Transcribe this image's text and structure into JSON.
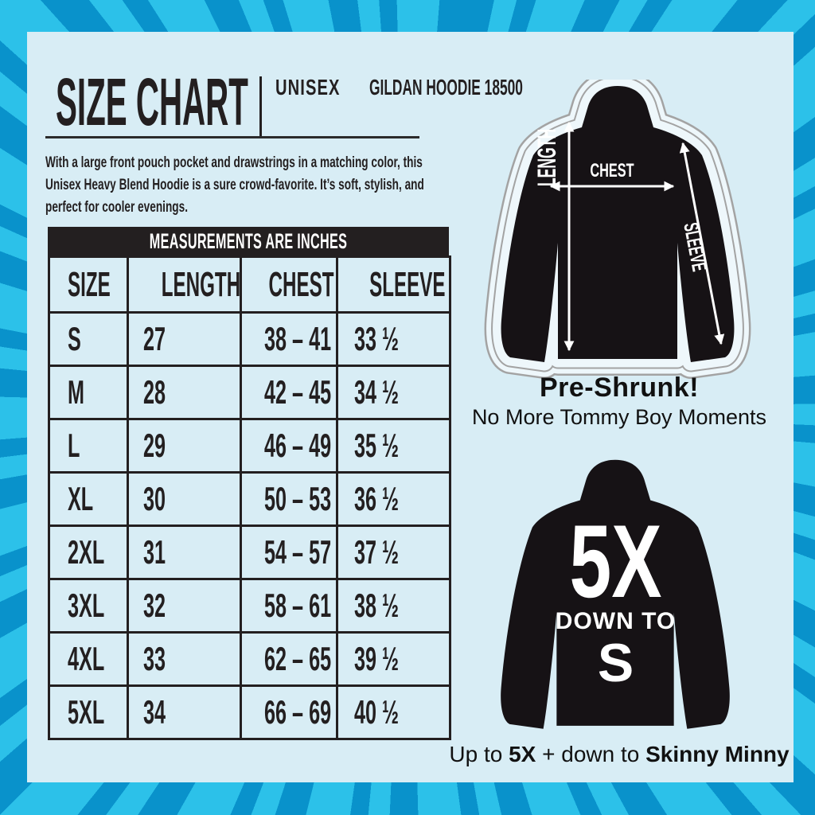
{
  "header": {
    "title": "SIZE CHART",
    "product_line1": "UNISEX",
    "product_line2": "GILDAN HOODIE 18500"
  },
  "description": "With a large front pouch pocket and drawstrings in a matching color, this Unisex Heavy Blend Hoodie is a sure crowd-favorite. It’s soft, stylish, and perfect for cooler evenings.",
  "table": {
    "banner": "MEASUREMENTS ARE INCHES",
    "columns": [
      "SIZE",
      "LENGTH",
      "CHEST",
      "SLEEVE"
    ],
    "rows": [
      {
        "size": "S",
        "length": "27",
        "chest": "38 – 41",
        "sleeve": "33 ½"
      },
      {
        "size": "M",
        "length": "28",
        "chest": "42 – 45",
        "sleeve": "34 ½"
      },
      {
        "size": "L",
        "length": "29",
        "chest": "46 – 49",
        "sleeve": "35 ½"
      },
      {
        "size": "XL",
        "length": "30",
        "chest": "50 – 53",
        "sleeve": "36 ½"
      },
      {
        "size": "2XL",
        "length": "31",
        "chest": "54 – 57",
        "sleeve": "37 ½"
      },
      {
        "size": "3XL",
        "length": "32",
        "chest": "58 – 61",
        "sleeve": "38 ½"
      },
      {
        "size": "4XL",
        "length": "33",
        "chest": "62 – 65",
        "sleeve": "39 ½"
      },
      {
        "size": "5XL",
        "length": "34",
        "chest": "66 – 69",
        "sleeve": "40 ½"
      }
    ]
  },
  "diagram": {
    "length_label": "LENGTH",
    "chest_label": "CHEST",
    "sleeve_label": "SLEEVE"
  },
  "preshrunk": {
    "title": "Pre-Shrunk!",
    "subtitle": "No More Tommy Boy Moments"
  },
  "range_hoodie": {
    "big": "5X",
    "middle": "DOWN TO",
    "small": "S"
  },
  "caption": {
    "p1": "Up to ",
    "p2": "5X",
    "p3": " + down to ",
    "p4": "Skinny Minny"
  },
  "colors": {
    "burst_dark": "#0992cb",
    "burst_bright": "#2cc1e9",
    "panel": "#d8edf5",
    "ink": "#231f20",
    "hoodie_black": "#161215",
    "sticker_grey": "#a3a3a3",
    "label_white": "#ffffff"
  }
}
